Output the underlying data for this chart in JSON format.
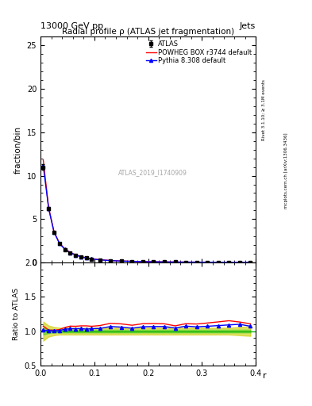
{
  "title_top": "13000 GeV pp",
  "title_right": "Jets",
  "main_title": "Radial profile ρ (ATLAS jet fragmentation)",
  "watermark": "ATLAS_2019_I1740909",
  "right_label_top": "Rivet 3.1.10; ≥ 3.1M events",
  "right_label_bottom": "mcplots.cern.ch [arXiv:1306.3436]",
  "ylabel_main": "fraction/bin",
  "ylabel_ratio": "Ratio to ATLAS",
  "xlabel": "r",
  "xlim": [
    0.0,
    0.4
  ],
  "ylim_main": [
    0,
    26
  ],
  "ylim_ratio": [
    0.5,
    2.0
  ],
  "yticks_main": [
    0,
    5,
    10,
    15,
    20,
    25
  ],
  "yticks_ratio": [
    0.5,
    1.0,
    1.5,
    2.0
  ],
  "r_values": [
    0.005,
    0.015,
    0.025,
    0.035,
    0.045,
    0.055,
    0.065,
    0.075,
    0.085,
    0.095,
    0.11,
    0.13,
    0.15,
    0.17,
    0.19,
    0.21,
    0.23,
    0.25,
    0.27,
    0.29,
    0.31,
    0.33,
    0.35,
    0.37,
    0.39
  ],
  "atlas_values": [
    11.0,
    6.2,
    3.5,
    2.2,
    1.5,
    1.1,
    0.85,
    0.65,
    0.52,
    0.42,
    0.31,
    0.22,
    0.17,
    0.14,
    0.11,
    0.09,
    0.075,
    0.065,
    0.055,
    0.048,
    0.042,
    0.037,
    0.033,
    0.03,
    0.028
  ],
  "atlas_errors": [
    0.3,
    0.2,
    0.12,
    0.08,
    0.06,
    0.04,
    0.03,
    0.025,
    0.02,
    0.018,
    0.012,
    0.009,
    0.007,
    0.006,
    0.005,
    0.004,
    0.003,
    0.003,
    0.002,
    0.002,
    0.002,
    0.002,
    0.001,
    0.001,
    0.001
  ],
  "powheg_values": [
    11.8,
    6.3,
    3.55,
    2.25,
    1.58,
    1.18,
    0.91,
    0.7,
    0.56,
    0.45,
    0.335,
    0.245,
    0.188,
    0.152,
    0.122,
    0.1,
    0.083,
    0.07,
    0.061,
    0.053,
    0.047,
    0.042,
    0.038,
    0.034,
    0.031
  ],
  "pythia_values": [
    11.15,
    6.25,
    3.52,
    2.22,
    1.54,
    1.14,
    0.88,
    0.675,
    0.535,
    0.435,
    0.322,
    0.235,
    0.18,
    0.146,
    0.117,
    0.096,
    0.08,
    0.068,
    0.059,
    0.051,
    0.045,
    0.04,
    0.036,
    0.033,
    0.03
  ],
  "powheg_ratio": [
    1.073,
    1.016,
    1.014,
    1.023,
    1.053,
    1.073,
    1.071,
    1.077,
    1.077,
    1.071,
    1.081,
    1.114,
    1.106,
    1.086,
    1.109,
    1.111,
    1.107,
    1.077,
    1.109,
    1.104,
    1.119,
    1.135,
    1.152,
    1.133,
    1.107
  ],
  "pythia_ratio": [
    1.014,
    1.008,
    1.006,
    1.009,
    1.027,
    1.036,
    1.035,
    1.038,
    1.029,
    1.036,
    1.039,
    1.068,
    1.059,
    1.043,
    1.064,
    1.067,
    1.067,
    1.046,
    1.073,
    1.063,
    1.071,
    1.081,
    1.091,
    1.1,
    1.071
  ],
  "atlas_color": "#000000",
  "powheg_color": "#ff0000",
  "pythia_color": "#0000ff",
  "atlas_band_color": "#00cc00",
  "atlas_band_alpha": 0.35,
  "atlas_syserr_color": "#cccc00",
  "atlas_syserr_alpha": 0.6,
  "legend_entries": [
    "ATLAS",
    "POWHEG BOX r3744 default",
    "Pythia 8.308 default"
  ]
}
